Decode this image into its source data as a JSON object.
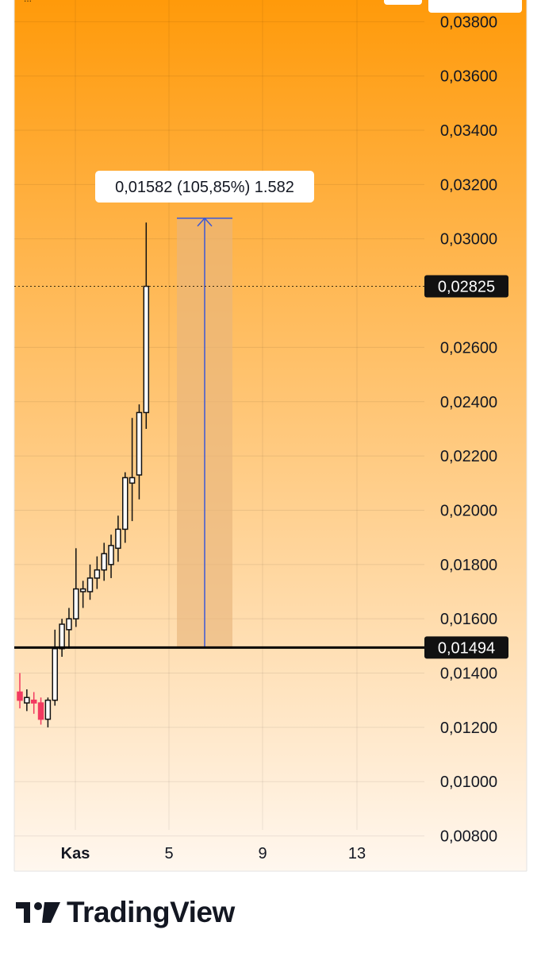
{
  "app": {
    "brand": "TradingView"
  },
  "colors": {
    "bg_top": "#ff9a0a",
    "bg_bottom": "#fff7ef",
    "candle_up": "#ffffff",
    "candle_down": "#f23a60",
    "outline": "#111111",
    "measure_fill": "#e8b57c",
    "measure_line": "#3c58d6",
    "label_bg": "#111111",
    "label_text": "#ffffff"
  },
  "chart_data": {
    "type": "candlestick",
    "x_labels": [
      "Kas",
      "5",
      "9",
      "13"
    ],
    "y_ticks": [
      "0,03800",
      "0,03600",
      "0,03400",
      "0,03200",
      "0,03000",
      "0,02600",
      "0,02400",
      "0,02200",
      "0,02000",
      "0,01800",
      "0,01600",
      "0,01400",
      "0,01200",
      "0,01000",
      "0,00800"
    ],
    "y_tick_values": [
      0.038,
      0.036,
      0.034,
      0.032,
      0.03,
      0.026,
      0.024,
      0.022,
      0.02,
      0.018,
      0.016,
      0.014,
      0.012,
      0.01,
      0.008
    ],
    "ylim": [
      0.0067,
      0.0388
    ],
    "current_price": {
      "value": 0.02825,
      "label": "0,02825"
    },
    "support_level": {
      "value": 0.01494,
      "label": "0,01494"
    },
    "measure": {
      "from": 0.01494,
      "to": 0.03076,
      "label": "0,01582 (105,85%) 1.582"
    },
    "candles": [
      {
        "open": 0.0133,
        "high": 0.014,
        "low": 0.0127,
        "close": 0.013,
        "dir": "down"
      },
      {
        "open": 0.0129,
        "high": 0.0134,
        "low": 0.0126,
        "close": 0.0131,
        "dir": "up"
      },
      {
        "open": 0.013,
        "high": 0.0133,
        "low": 0.0125,
        "close": 0.0129,
        "dir": "down"
      },
      {
        "open": 0.0129,
        "high": 0.0131,
        "low": 0.0121,
        "close": 0.0123,
        "dir": "down"
      },
      {
        "open": 0.0123,
        "high": 0.0131,
        "low": 0.012,
        "close": 0.013,
        "dir": "up"
      },
      {
        "open": 0.013,
        "high": 0.0156,
        "low": 0.0128,
        "close": 0.0149,
        "dir": "up"
      },
      {
        "open": 0.0149,
        "high": 0.016,
        "low": 0.0146,
        "close": 0.0158,
        "dir": "up"
      },
      {
        "open": 0.0156,
        "high": 0.0164,
        "low": 0.0149,
        "close": 0.016,
        "dir": "up"
      },
      {
        "open": 0.016,
        "high": 0.0186,
        "low": 0.0157,
        "close": 0.0171,
        "dir": "up"
      },
      {
        "open": 0.017,
        "high": 0.0174,
        "low": 0.0164,
        "close": 0.0171,
        "dir": "up"
      },
      {
        "open": 0.017,
        "high": 0.018,
        "low": 0.0167,
        "close": 0.0175,
        "dir": "up"
      },
      {
        "open": 0.0175,
        "high": 0.0183,
        "low": 0.0171,
        "close": 0.0178,
        "dir": "up"
      },
      {
        "open": 0.0178,
        "high": 0.0188,
        "low": 0.0174,
        "close": 0.0184,
        "dir": "up"
      },
      {
        "open": 0.018,
        "high": 0.0191,
        "low": 0.0175,
        "close": 0.0187,
        "dir": "up"
      },
      {
        "open": 0.0186,
        "high": 0.0198,
        "low": 0.0181,
        "close": 0.0193,
        "dir": "up"
      },
      {
        "open": 0.0193,
        "high": 0.0214,
        "low": 0.0188,
        "close": 0.0212,
        "dir": "up"
      },
      {
        "open": 0.021,
        "high": 0.0234,
        "low": 0.0196,
        "close": 0.0212,
        "dir": "up"
      },
      {
        "open": 0.0213,
        "high": 0.0239,
        "low": 0.0204,
        "close": 0.0236,
        "dir": "up"
      },
      {
        "open": 0.0236,
        "high": 0.0306,
        "low": 0.023,
        "close": 0.02825,
        "dir": "up"
      }
    ]
  }
}
